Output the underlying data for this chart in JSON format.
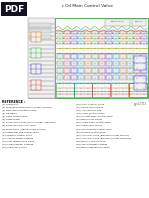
{
  "title_short": "r Oil Main Control Valve",
  "background_color": "#ffffff",
  "pdf_badge_color": "#111122",
  "pdf_text_color": "#ffffff",
  "line_colors": {
    "green": "#33aa33",
    "red": "#cc3333",
    "blue": "#3333cc",
    "yellow": "#aaaa00",
    "orange": "#cc7700",
    "cyan": "#009999",
    "magenta": "#aa33aa",
    "black": "#222222",
    "gray": "#888888",
    "ltgray": "#cccccc",
    "dkgray": "#555555"
  },
  "legend_header": "REFERENCE :",
  "legend_items": [
    "(1) Return port",
    "(2) Load relief valve (main cylinder rod end)",
    "(3) Front deck oscillation valve",
    "(4) Lift frame",
    "(5) Slope control valve",
    "(6) Single brake",
    "(7) Cross relief valves (cross cylinder head end)",
    "(8) Boom lock reduction valve",
    "(9) Relief valve (regulator flow control)",
    "(10) Regulator flow control valve",
    "(11) Brake IV control valve",
    "(12) Center bypass passage",
    "(13) Pilot regeneration valve",
    "(14) Parallel feeder passage",
    "(15) Load check valve",
    "(16) Stick 1 control valve",
    "(17) Swing control valve",
    "(18) Arm control valve",
    "(19) Travel control valves",
    "(20) Straight travel control valve",
    "(21) Boom relief valves",
    "(22) Single travel control valve",
    "(23) Load check valves",
    "(24) Simultaneous control valve",
    "(25) Blocked control valve",
    "(26) Arm relief valve (Blocked cylinder rod end)",
    "(27) Arm relief valve (Blocked cylinder head end)",
    "(28) Boom 1 control valve",
    "(29) Center bypass passage",
    "(30) Boom regeneration valve"
  ],
  "part_number": "gg-01711",
  "figsize": [
    1.49,
    1.98
  ],
  "dpi": 100
}
